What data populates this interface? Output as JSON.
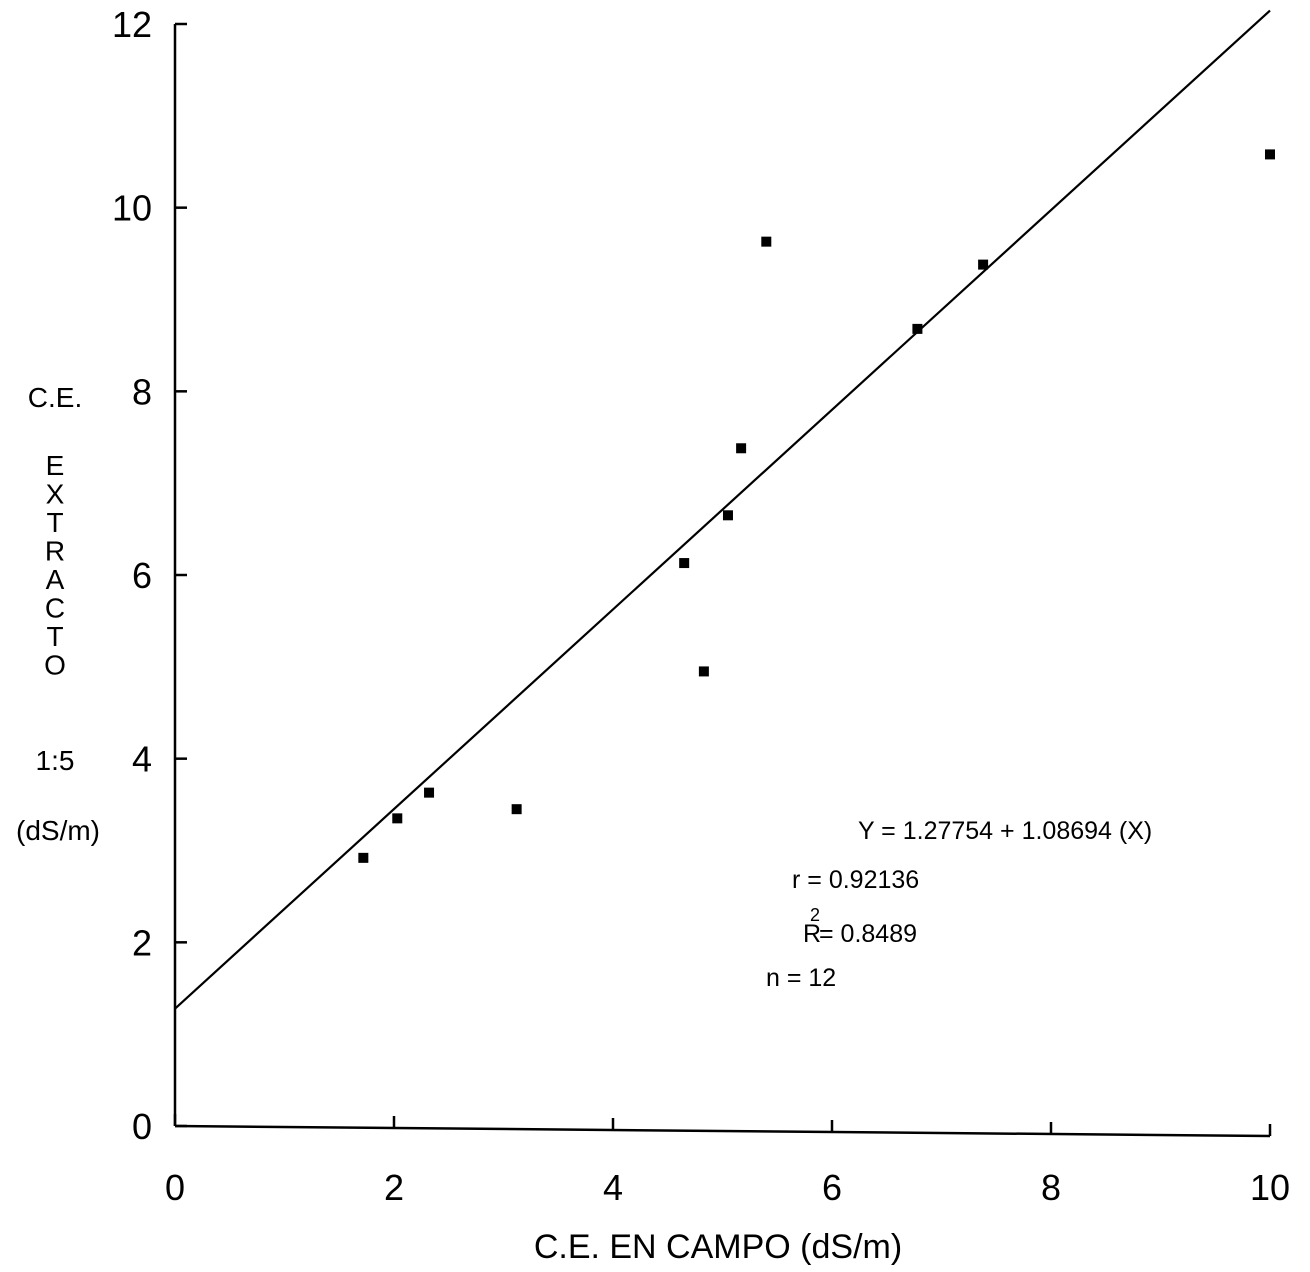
{
  "chart_data": {
    "type": "scatter",
    "title": "",
    "xlabel": "C.E. EN CAMPO (dS/m)",
    "ylabel": {
      "line1": "C.E.",
      "line2_letters": [
        "E",
        "X",
        "T",
        "R",
        "A",
        "C",
        "T",
        "O"
      ],
      "line3": "1:5",
      "line4": "(dS/m)"
    },
    "xlim": [
      0,
      10
    ],
    "ylim": [
      0,
      12
    ],
    "x_ticks": [
      0,
      2,
      4,
      6,
      8,
      10
    ],
    "y_ticks": [
      0,
      2,
      4,
      6,
      8,
      10,
      12
    ],
    "x_tick_labels": [
      "0",
      "2",
      "4",
      "6",
      "8",
      "10"
    ],
    "y_tick_labels": [
      "0",
      "2",
      "4",
      "6",
      "8",
      "10",
      "12"
    ],
    "grid": false,
    "points": [
      {
        "x": 1.72,
        "y": 2.92
      },
      {
        "x": 2.03,
        "y": 3.35
      },
      {
        "x": 2.32,
        "y": 3.63
      },
      {
        "x": 3.12,
        "y": 3.45
      },
      {
        "x": 4.65,
        "y": 6.13
      },
      {
        "x": 4.83,
        "y": 4.95
      },
      {
        "x": 5.05,
        "y": 6.65
      },
      {
        "x": 5.17,
        "y": 7.38
      },
      {
        "x": 5.4,
        "y": 9.63
      },
      {
        "x": 6.78,
        "y": 8.68
      },
      {
        "x": 7.38,
        "y": 9.38
      },
      {
        "x": 10.0,
        "y": 10.58
      }
    ],
    "regression": {
      "intercept": 1.27754,
      "slope": 1.08694,
      "x_range": [
        0,
        10
      ]
    },
    "annotations": {
      "equation": "Y = 1.27754 + 1.08694 (X)",
      "r": "r = 0.92136",
      "r2_base": "R",
      "r2_sup": "2",
      "r2_value": "= 0.8489",
      "n": "n = 12"
    }
  }
}
